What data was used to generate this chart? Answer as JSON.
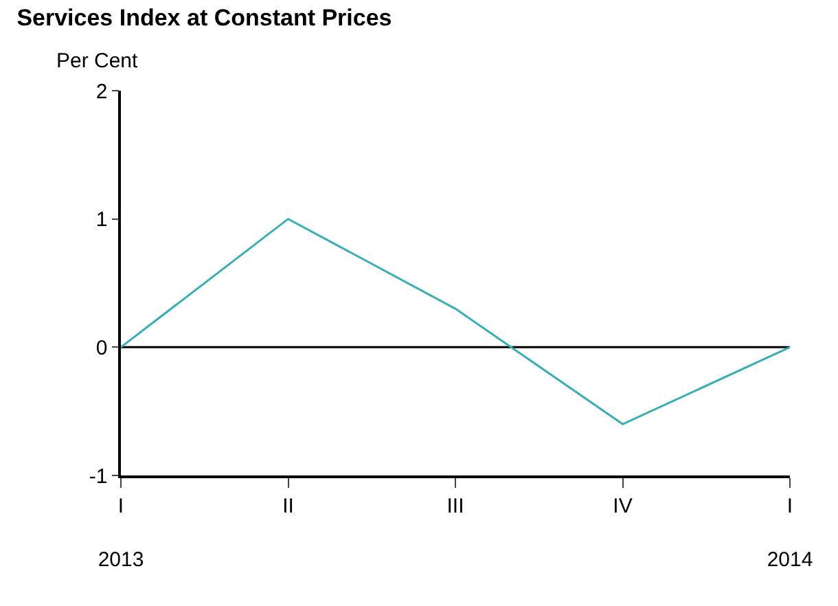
{
  "chart_data": {
    "type": "line",
    "title": "Services Index at Constant Prices",
    "ylabel": "Per Cent",
    "categories": [
      "I\n2013",
      "II",
      "III",
      "IV",
      "I\n2014"
    ],
    "series": [
      {
        "color": "#3aadb5",
        "values": [
          0,
          1,
          0.3,
          -0.6,
          0
        ]
      }
    ],
    "ylim": [
      -1,
      2
    ],
    "yticks": [
      -1,
      0,
      1,
      2
    ],
    "ref_lines": [
      {
        "axis": "y",
        "value": 0,
        "color": "#000000"
      }
    ],
    "grid": false,
    "legend": false,
    "marker": "none",
    "line_style": "solid"
  }
}
